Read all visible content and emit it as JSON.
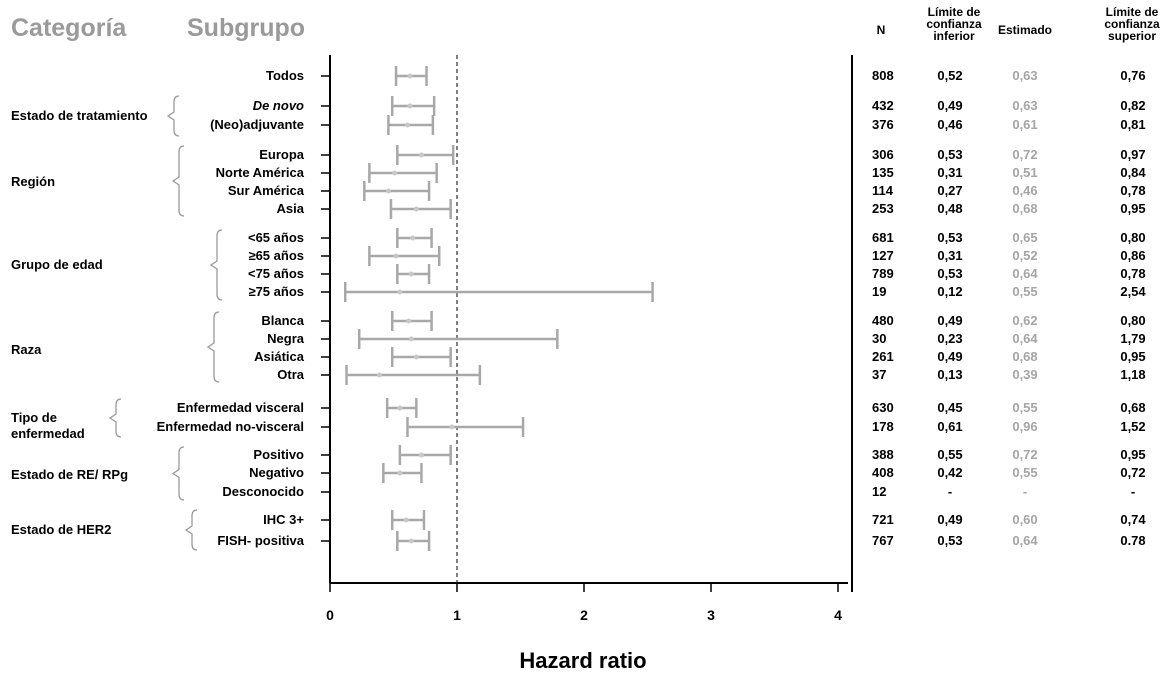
{
  "headers": {
    "category": "Categoría",
    "subgroup": "Subgrupo",
    "n": "N",
    "lower": "Límite de confianza inferior",
    "estimate": "Estimado",
    "upper": "Límite de confianza superior"
  },
  "chart_data": {
    "type": "forest",
    "xlabel": "Hazard ratio",
    "xlim": [
      0,
      4
    ],
    "xticks": [
      "0",
      "1",
      "2",
      "3",
      "4"
    ],
    "reference_line": 1,
    "categories": [
      {
        "label": "",
        "rows": [
          0
        ]
      },
      {
        "label": "Estado de tratamiento",
        "rows": [
          1,
          2
        ]
      },
      {
        "label": "Región",
        "rows": [
          3,
          4,
          5,
          6
        ]
      },
      {
        "label": "Grupo de edad",
        "rows": [
          7,
          8,
          9,
          10
        ]
      },
      {
        "label": "Raza",
        "rows": [
          11,
          12,
          13,
          14
        ]
      },
      {
        "label": "Tipo de enfermedad",
        "rows": [
          15,
          16
        ]
      },
      {
        "label": "Estado de RE/ RPg",
        "rows": [
          17,
          18,
          19
        ]
      },
      {
        "label": "Estado de HER2",
        "rows": [
          20,
          21
        ]
      }
    ],
    "rows": [
      {
        "label": "Todos",
        "n": "808",
        "lower": "0,52",
        "est": "0,63",
        "upper": "0,76",
        "lo": 0.52,
        "e": 0.63,
        "hi": 0.76
      },
      {
        "label": "De novo",
        "italic": true,
        "n": "432",
        "lower": "0,49",
        "est": "0,63",
        "upper": "0,82",
        "lo": 0.49,
        "e": 0.63,
        "hi": 0.82
      },
      {
        "label": "(Neo)adjuvante",
        "n": "376",
        "lower": "0,46",
        "est": "0,61",
        "upper": "0,81",
        "lo": 0.46,
        "e": 0.61,
        "hi": 0.81
      },
      {
        "label": "Europa",
        "n": "306",
        "lower": "0,53",
        "est": "0,72",
        "upper": "0,97",
        "lo": 0.53,
        "e": 0.72,
        "hi": 0.97
      },
      {
        "label": "Norte América",
        "n": "135",
        "lower": "0,31",
        "est": "0,51",
        "upper": "0,84",
        "lo": 0.31,
        "e": 0.51,
        "hi": 0.84
      },
      {
        "label": "Sur América",
        "n": "114",
        "lower": "0,27",
        "est": "0,46",
        "upper": "0,78",
        "lo": 0.27,
        "e": 0.46,
        "hi": 0.78
      },
      {
        "label": "Asia",
        "n": "253",
        "lower": "0,48",
        "est": "0,68",
        "upper": "0,95",
        "lo": 0.48,
        "e": 0.68,
        "hi": 0.95
      },
      {
        "label": "<65 años",
        "n": "681",
        "lower": "0,53",
        "est": "0,65",
        "upper": "0,80",
        "lo": 0.53,
        "e": 0.65,
        "hi": 0.8
      },
      {
        "label": "≥65 años",
        "n": "127",
        "lower": "0,31",
        "est": "0,52",
        "upper": "0,86",
        "lo": 0.31,
        "e": 0.52,
        "hi": 0.86
      },
      {
        "label": "<75 años",
        "n": "789",
        "lower": "0,53",
        "est": "0,64",
        "upper": "0,78",
        "lo": 0.53,
        "e": 0.64,
        "hi": 0.78
      },
      {
        "label": "≥75 años",
        "n": "19",
        "lower": "0,12",
        "est": "0,55",
        "upper": "2,54",
        "lo": 0.12,
        "e": 0.55,
        "hi": 2.54
      },
      {
        "label": "Blanca",
        "n": "480",
        "lower": "0,49",
        "est": "0,62",
        "upper": "0,80",
        "lo": 0.49,
        "e": 0.62,
        "hi": 0.8
      },
      {
        "label": "Negra",
        "n": "30",
        "lower": "0,23",
        "est": "0,64",
        "upper": "1,79",
        "lo": 0.23,
        "e": 0.64,
        "hi": 1.79
      },
      {
        "label": "Asiática",
        "n": "261",
        "lower": "0,49",
        "est": "0,68",
        "upper": "0,95",
        "lo": 0.49,
        "e": 0.68,
        "hi": 0.95
      },
      {
        "label": "Otra",
        "n": "37",
        "lower": "0,13",
        "est": "0,39",
        "upper": "1,18",
        "lo": 0.13,
        "e": 0.39,
        "hi": 1.18
      },
      {
        "label": "Enfermedad visceral",
        "n": "630",
        "lower": "0,45",
        "est": "0,55",
        "upper": "0,68",
        "lo": 0.45,
        "e": 0.55,
        "hi": 0.68
      },
      {
        "label": "Enfermedad no-visceral",
        "n": "178",
        "lower": "0,61",
        "est": "0,96",
        "upper": "1,52",
        "lo": 0.61,
        "e": 0.96,
        "hi": 1.52
      },
      {
        "label": "Positivo",
        "n": "388",
        "lower": "0,55",
        "est": "0,72",
        "upper": "0,95",
        "lo": 0.55,
        "e": 0.72,
        "hi": 0.95
      },
      {
        "label": "Negativo",
        "n": "408",
        "lower": "0,42",
        "est": "0,55",
        "upper": "0,72",
        "lo": 0.42,
        "e": 0.55,
        "hi": 0.72
      },
      {
        "label": "Desconocido",
        "n": "12",
        "lower": "-",
        "est": "-",
        "upper": "-",
        "lo": null,
        "e": null,
        "hi": null
      },
      {
        "label": "IHC 3+",
        "n": "721",
        "lower": "0,49",
        "est": "0,60",
        "upper": "0,74",
        "lo": 0.49,
        "e": 0.6,
        "hi": 0.74
      },
      {
        "label": "FISH- positiva",
        "n": "767",
        "lower": "0,53",
        "est": "0,64",
        "upper": "0.78",
        "lo": 0.53,
        "e": 0.64,
        "hi": 0.78
      }
    ]
  }
}
